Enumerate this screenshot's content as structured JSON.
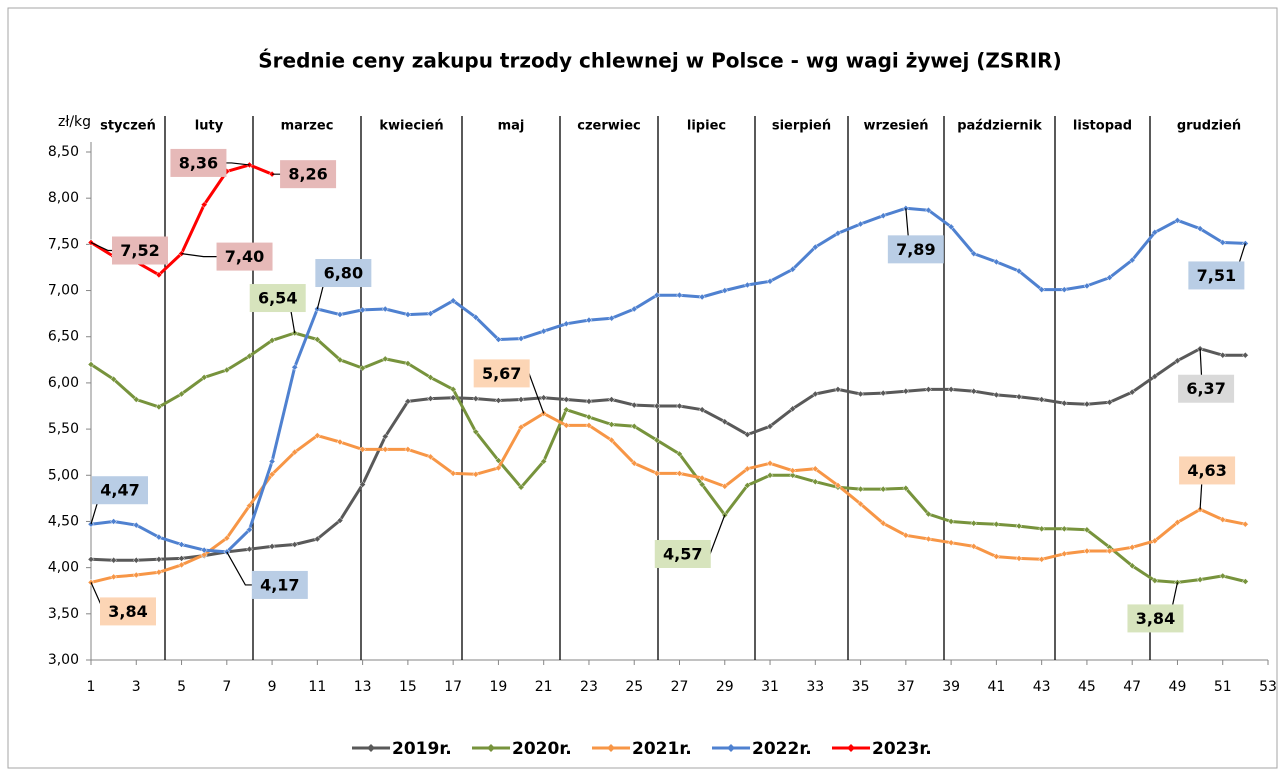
{
  "chart_data": {
    "type": "line",
    "title": "Średnie ceny zakupu trzody chlewnej w Polsce - wg wagi żywej (ZSRIR)",
    "y_label": "zł/kg",
    "months": [
      "styczeń",
      "luty",
      "marzec",
      "kwiecień",
      "maj",
      "czerwiec",
      "lipiec",
      "sierpień",
      "wrzesień",
      "październik",
      "listopad",
      "grudzień"
    ],
    "xlim": [
      1,
      53
    ],
    "xticks": [
      1,
      3,
      5,
      7,
      9,
      11,
      13,
      15,
      17,
      19,
      21,
      23,
      25,
      27,
      29,
      31,
      33,
      35,
      37,
      39,
      41,
      43,
      45,
      47,
      49,
      51,
      53
    ],
    "ylim": [
      3,
      8.5
    ],
    "yticks": [
      {
        "value": 3,
        "label": "3,00"
      },
      {
        "value": 3.5,
        "label": "3,50"
      },
      {
        "value": 4,
        "label": "4,00"
      },
      {
        "value": 4.5,
        "label": "4,50"
      },
      {
        "value": 5,
        "label": "5,00"
      },
      {
        "value": 5.5,
        "label": "5,50"
      },
      {
        "value": 6,
        "label": "6,00"
      },
      {
        "value": 6.5,
        "label": "6,50"
      },
      {
        "value": 7,
        "label": "7,00"
      },
      {
        "value": 7.5,
        "label": "7,50"
      },
      {
        "value": 8,
        "label": "8,00"
      },
      {
        "value": 8.5,
        "label": "8,50"
      }
    ],
    "x": [
      1,
      2,
      3,
      4,
      5,
      6,
      7,
      8,
      9,
      10,
      11,
      12,
      13,
      14,
      15,
      16,
      17,
      18,
      19,
      20,
      21,
      22,
      23,
      24,
      25,
      26,
      27,
      28,
      29,
      30,
      31,
      32,
      33,
      34,
      35,
      36,
      37,
      38,
      39,
      40,
      41,
      42,
      43,
      44,
      45,
      46,
      47,
      48,
      49,
      50,
      51,
      52
    ],
    "series": [
      {
        "name": "2019r.",
        "color": "#595959",
        "label_color": "#d9d9d9",
        "values": [
          4.09,
          4.08,
          4.08,
          4.09,
          4.1,
          4.13,
          4.17,
          4.2,
          4.23,
          4.25,
          4.31,
          4.51,
          4.9,
          5.42,
          5.8,
          5.83,
          5.84,
          5.83,
          5.81,
          5.82,
          5.84,
          5.82,
          5.8,
          5.82,
          5.76,
          5.75,
          5.75,
          5.71,
          5.58,
          5.44,
          5.53,
          5.72,
          5.88,
          5.93,
          5.88,
          5.89,
          5.91,
          5.93,
          5.93,
          5.91,
          5.87,
          5.85,
          5.82,
          5.78,
          5.77,
          5.79,
          5.9,
          6.07,
          6.24,
          6.37,
          6.3,
          6.3
        ],
        "value_labels": [
          null,
          null,
          null,
          null,
          null,
          null,
          null,
          null,
          null,
          null,
          null,
          null,
          null,
          null,
          null,
          null,
          null,
          null,
          null,
          null,
          null,
          null,
          null,
          null,
          null,
          null,
          null,
          null,
          null,
          null,
          null,
          null,
          null,
          null,
          null,
          null,
          null,
          null,
          null,
          null,
          null,
          null,
          null,
          null,
          null,
          null,
          null,
          null,
          null,
          "6,37",
          null,
          null
        ]
      },
      {
        "name": "2020r.",
        "color": "#77933c",
        "label_color": "#d7e4bd",
        "values": [
          6.2,
          6.04,
          5.82,
          5.74,
          5.88,
          6.06,
          6.14,
          6.29,
          6.46,
          6.54,
          6.47,
          6.25,
          6.16,
          6.26,
          6.21,
          6.06,
          5.93,
          5.47,
          5.16,
          4.87,
          5.15,
          5.71,
          5.63,
          5.55,
          5.53,
          5.38,
          5.23,
          4.9,
          4.57,
          4.89,
          5.0,
          5.0,
          4.93,
          4.87,
          4.85,
          4.85,
          4.86,
          4.58,
          4.5,
          4.48,
          4.47,
          4.45,
          4.42,
          4.42,
          4.41,
          4.22,
          4.02,
          3.86,
          3.84,
          3.87,
          3.91,
          3.85
        ],
        "value_labels": [
          null,
          null,
          null,
          null,
          null,
          null,
          null,
          null,
          null,
          "6,54",
          null,
          null,
          null,
          null,
          null,
          null,
          null,
          null,
          null,
          null,
          null,
          null,
          null,
          null,
          null,
          null,
          null,
          null,
          "4,57",
          null,
          null,
          null,
          null,
          null,
          null,
          null,
          null,
          null,
          null,
          null,
          null,
          null,
          null,
          null,
          null,
          null,
          null,
          null,
          "3,84",
          null,
          null,
          null
        ]
      },
      {
        "name": "2021r.",
        "color": "#f79646",
        "label_color": "#fcd5b5",
        "values": [
          3.84,
          3.9,
          3.92,
          3.95,
          4.03,
          4.14,
          4.32,
          4.67,
          5.01,
          5.25,
          5.43,
          5.36,
          5.28,
          5.28,
          5.28,
          5.2,
          5.02,
          5.01,
          5.08,
          5.52,
          5.67,
          5.54,
          5.54,
          5.38,
          5.13,
          5.02,
          5.02,
          4.97,
          4.88,
          5.07,
          5.13,
          5.05,
          5.07,
          4.89,
          4.69,
          4.48,
          4.35,
          4.31,
          4.27,
          4.23,
          4.12,
          4.1,
          4.09,
          4.15,
          4.18,
          4.18,
          4.22,
          4.29,
          4.49,
          4.63,
          4.52,
          4.47
        ],
        "value_labels": [
          "3,84",
          null,
          null,
          null,
          null,
          null,
          null,
          null,
          null,
          null,
          null,
          null,
          null,
          null,
          null,
          null,
          null,
          null,
          null,
          null,
          "5,67",
          null,
          null,
          null,
          null,
          null,
          null,
          null,
          null,
          null,
          null,
          null,
          null,
          null,
          null,
          null,
          null,
          null,
          null,
          null,
          null,
          null,
          null,
          null,
          null,
          null,
          null,
          null,
          null,
          "4,63",
          null,
          null
        ]
      },
      {
        "name": "2022r.",
        "color": "#4f81d0",
        "label_color": "#b9cde5",
        "values": [
          4.47,
          4.5,
          4.46,
          4.33,
          4.25,
          4.19,
          4.17,
          4.41,
          5.15,
          6.17,
          6.8,
          6.74,
          6.79,
          6.8,
          6.74,
          6.75,
          6.89,
          6.71,
          6.47,
          6.48,
          6.56,
          6.64,
          6.68,
          6.7,
          6.8,
          6.95,
          6.95,
          6.93,
          7.0,
          7.06,
          7.1,
          7.23,
          7.47,
          7.62,
          7.72,
          7.81,
          7.89,
          7.87,
          7.69,
          7.4,
          7.31,
          7.21,
          7.01,
          7.01,
          7.05,
          7.14,
          7.33,
          7.63,
          7.76,
          7.67,
          7.52,
          7.51
        ],
        "value_labels": [
          "4,47",
          null,
          null,
          null,
          null,
          null,
          "4,17",
          null,
          null,
          null,
          "6,80",
          null,
          null,
          null,
          null,
          null,
          null,
          null,
          null,
          null,
          null,
          null,
          null,
          null,
          null,
          null,
          null,
          null,
          null,
          null,
          null,
          null,
          null,
          null,
          null,
          null,
          "7,89",
          null,
          null,
          null,
          null,
          null,
          null,
          null,
          null,
          null,
          null,
          null,
          null,
          null,
          null,
          "7,51"
        ]
      },
      {
        "name": "2023r.",
        "color": "#ff0000",
        "label_color": "#e6b9b8",
        "values": [
          7.52,
          7.37,
          7.31,
          7.17,
          7.4,
          7.93,
          8.29,
          8.36,
          8.26,
          null,
          null,
          null,
          null,
          null,
          null,
          null,
          null,
          null,
          null,
          null,
          null,
          null,
          null,
          null,
          null,
          null,
          null,
          null,
          null,
          null,
          null,
          null,
          null,
          null,
          null,
          null,
          null,
          null,
          null,
          null,
          null,
          null,
          null,
          null,
          null,
          null,
          null,
          null,
          null,
          null,
          null,
          null
        ],
        "value_labels": [
          "7,52",
          null,
          null,
          null,
          "7,40",
          null,
          null,
          "8,36",
          "8,26",
          null,
          null,
          null,
          null,
          null,
          null,
          null,
          null,
          null,
          null,
          null,
          null,
          null,
          null,
          null,
          null,
          null,
          null,
          null,
          null,
          null,
          null,
          null,
          null,
          null,
          null,
          null,
          null,
          null,
          null,
          null,
          null,
          null,
          null,
          null,
          null,
          null,
          null,
          null,
          null,
          null,
          null,
          null
        ]
      }
    ]
  }
}
